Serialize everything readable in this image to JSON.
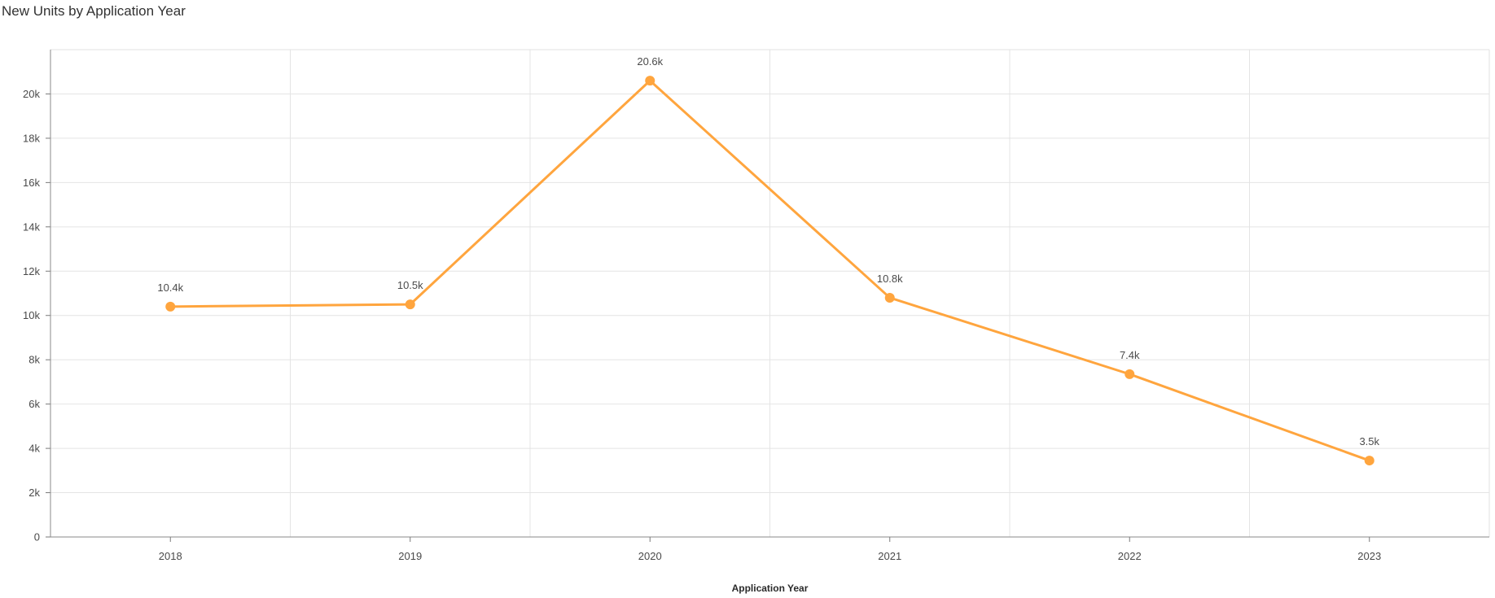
{
  "chart_data": {
    "type": "line",
    "title": "New Units by Application Year",
    "xlabel": "Application Year",
    "ylabel": "",
    "categories": [
      "2018",
      "2019",
      "2020",
      "2021",
      "2022",
      "2023"
    ],
    "series": [
      {
        "values": [
          10400,
          10500,
          20600,
          10800,
          7350,
          3450
        ],
        "data_labels": [
          "10.4k",
          "10.5k",
          "20.6k",
          "10.8k",
          "7.4k",
          "3.5k"
        ],
        "color": "#ffa53e"
      }
    ],
    "ylim": [
      0,
      22000
    ],
    "y_ticks": [
      0,
      2000,
      4000,
      6000,
      8000,
      10000,
      12000,
      14000,
      16000,
      18000,
      20000
    ],
    "y_tick_labels": [
      "0",
      "2k",
      "4k",
      "6k",
      "8k",
      "10k",
      "12k",
      "14k",
      "16k",
      "18k",
      "20k"
    ],
    "grid": true,
    "legend": "none"
  }
}
